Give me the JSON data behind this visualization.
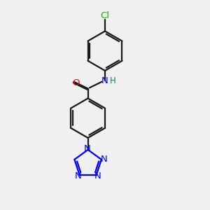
{
  "background_color": "#f0f0f0",
  "bond_color": "#1a1a1a",
  "N_color": "#0000ff",
  "O_color": "#ff0000",
  "Cl_color": "#00bb00",
  "H_color": "#008080",
  "figsize": [
    3.0,
    3.0
  ],
  "dpi": 100,
  "xlim": [
    0,
    10
  ],
  "ylim": [
    0,
    10
  ],
  "bond_lw": 1.6,
  "font_size": 9.5
}
